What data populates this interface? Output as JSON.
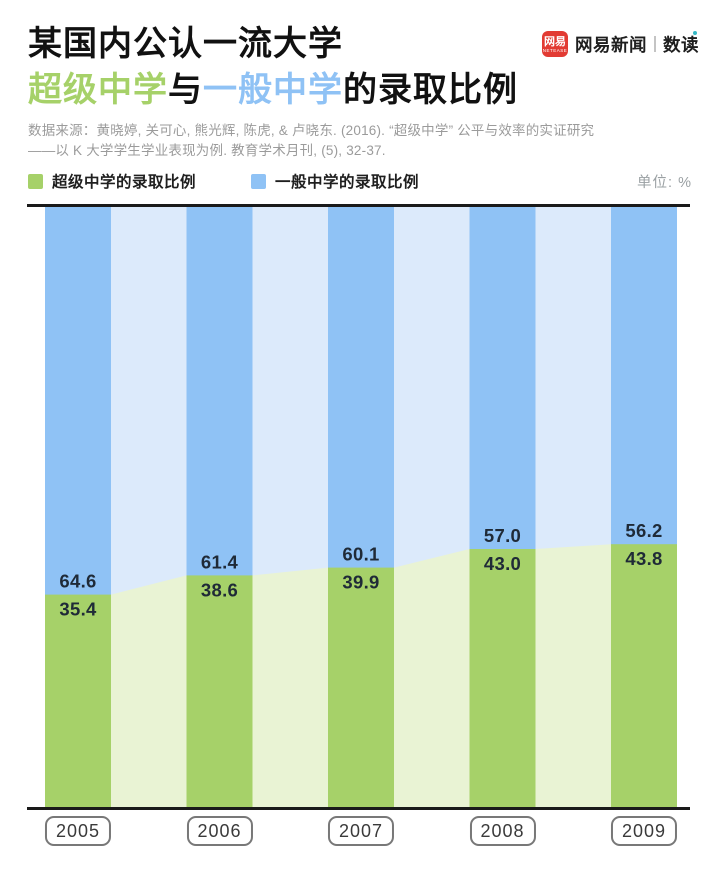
{
  "header": {
    "title_line1": "某国内公认一流大学",
    "title_line2_parts": [
      {
        "text": "超级中学",
        "color": "#a6d169"
      },
      {
        "text": "与",
        "color": "#111111"
      },
      {
        "text": "一般中学",
        "color": "#8fc2f5"
      },
      {
        "text": "的录取比例",
        "color": "#111111"
      }
    ],
    "source_line1": "数据来源：黄晓婷, 关可心, 熊光辉, 陈虎, & 卢晓东. (2016). “超级中学” 公平与效率的实证研究",
    "source_line2": "——以 K 大学学生学业表现为例. 教育学术月刊, (5), 32-37.",
    "logo": {
      "badge_text": "网易",
      "badge_sub": "NETEASE",
      "brand": "网易新闻",
      "product": "数读",
      "badge_color": "#e23b33",
      "dot_color": "#35b9c6"
    }
  },
  "legend": {
    "items": [
      {
        "label": "超级中学的录取比例",
        "color": "#a6d169"
      },
      {
        "label": "一般中学的录取比例",
        "color": "#8fc2f5"
      }
    ],
    "unit_label": "单位: %"
  },
  "chart_data": {
    "type": "bar",
    "subtype": "stacked-percentage-bars-with-connecting-areas",
    "categories": [
      "2005",
      "2006",
      "2007",
      "2008",
      "2009"
    ],
    "series": [
      {
        "name": "超级中学的录取比例",
        "values": [
          35.4,
          38.6,
          39.9,
          43.0,
          43.8
        ],
        "labels": [
          "35.4",
          "38.6",
          "39.9",
          "43.0",
          "43.8"
        ],
        "color": "#a6d169",
        "light_color": "#e9f3d4"
      },
      {
        "name": "一般中学的录取比例",
        "values": [
          64.6,
          61.4,
          60.1,
          57.0,
          56.2
        ],
        "labels": [
          "64.6",
          "61.4",
          "60.1",
          "57.0",
          "56.2"
        ],
        "color": "#8fc2f5",
        "light_color": "#dceafb"
      }
    ],
    "title": "某国内公认一流大学超级中学与一般中学的录取比例",
    "xlabel": "",
    "ylabel": "",
    "unit": "%",
    "ylim": [
      0,
      100
    ],
    "grid": false,
    "legend_position": "top",
    "label_color": "#1f2a37",
    "axis_line_color": "#1a1a1a"
  }
}
